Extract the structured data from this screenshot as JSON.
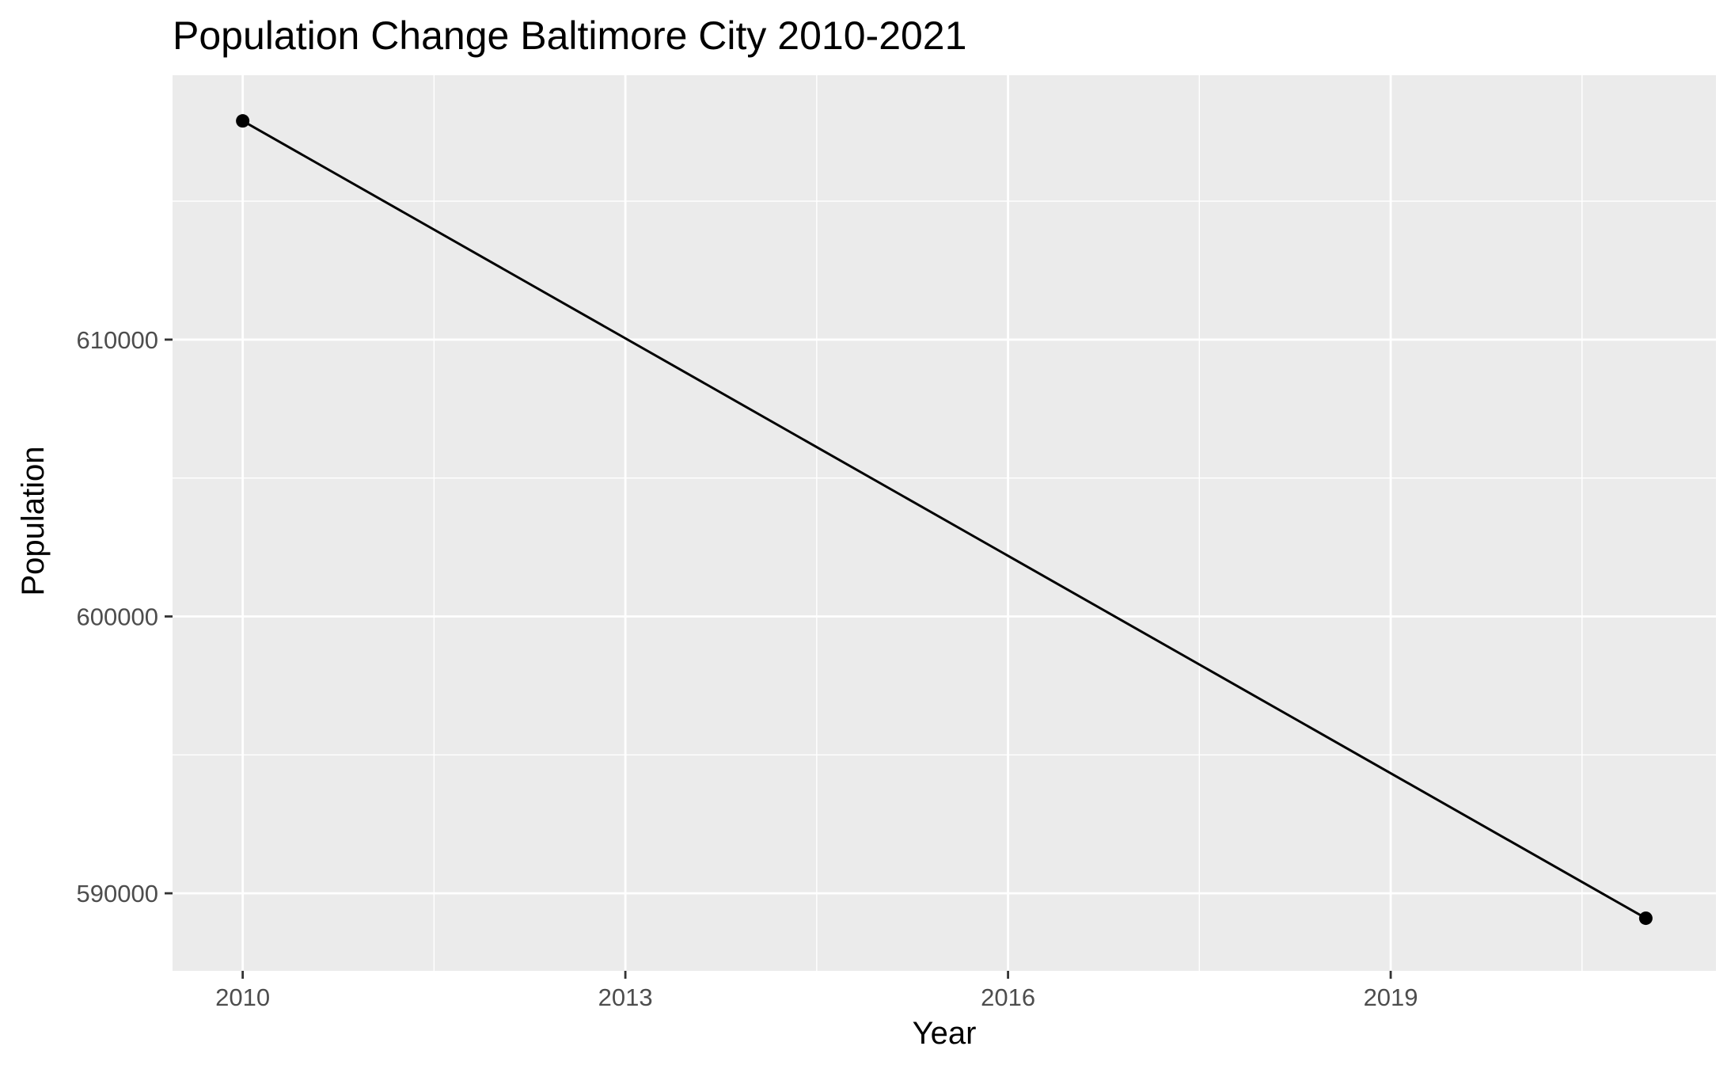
{
  "chart_data": {
    "type": "line",
    "title": "Population Change Baltimore City 2010-2021",
    "xlabel": "Year",
    "ylabel": "Population",
    "x_ticks": [
      "2010",
      "2013",
      "2016",
      "2019"
    ],
    "y_ticks": [
      "590000",
      "600000",
      "610000"
    ],
    "xlim": [
      2009.45,
      2021.55
    ],
    "ylim": [
      587200,
      619550
    ],
    "grid": true,
    "series": [
      {
        "x": [
          2010,
          2021
        ],
        "values": [
          617900,
          589100
        ]
      }
    ],
    "colors": {
      "panel_background": "#ebebeb",
      "grid": "#ffffff",
      "line": "#000000",
      "tick_text": "#4d4d4d",
      "tick_mark": "#333333"
    }
  }
}
